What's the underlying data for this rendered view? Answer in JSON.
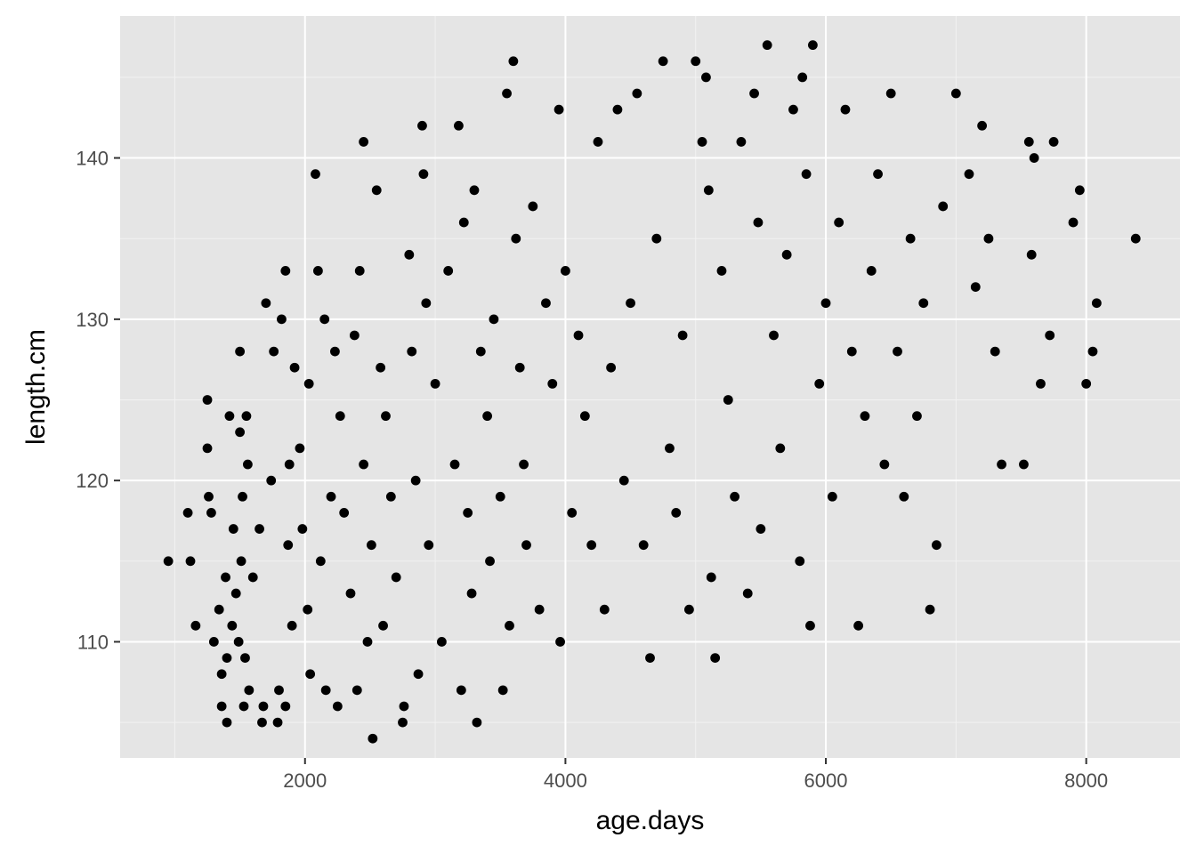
{
  "chart_data": {
    "type": "scatter",
    "title": "",
    "xlabel": "age.days",
    "ylabel": "length.cm",
    "xlim": [
      580,
      8720
    ],
    "ylim": [
      102.8,
      148.8
    ],
    "x_ticks": [
      2000,
      4000,
      6000,
      8000
    ],
    "x_tick_labels": [
      "2000",
      "4000",
      "6000",
      "8000"
    ],
    "y_ticks": [
      110,
      120,
      130,
      140
    ],
    "y_tick_labels": [
      "110",
      "120",
      "130",
      "140"
    ],
    "grid": true,
    "legend": "none",
    "colors": {
      "panel_background": "#e5e5e5",
      "grid_major": "#ffffff",
      "grid_minor": "#f2f2f2",
      "point": "#000000",
      "tick_label": "#4d4d4d",
      "axis_title": "#000000"
    },
    "series": [
      {
        "points": [
          [
            950,
            115
          ],
          [
            1100,
            118
          ],
          [
            1120,
            115
          ],
          [
            1160,
            111
          ],
          [
            1250,
            125
          ],
          [
            1250,
            122
          ],
          [
            1260,
            119
          ],
          [
            1280,
            118
          ],
          [
            1300,
            110
          ],
          [
            1340,
            112
          ],
          [
            1360,
            108
          ],
          [
            1360,
            106
          ],
          [
            1390,
            114
          ],
          [
            1400,
            105
          ],
          [
            1400,
            109
          ],
          [
            1420,
            124
          ],
          [
            1440,
            111
          ],
          [
            1450,
            117
          ],
          [
            1470,
            113
          ],
          [
            1490,
            110
          ],
          [
            1500,
            128
          ],
          [
            1500,
            123
          ],
          [
            1510,
            115
          ],
          [
            1520,
            119
          ],
          [
            1530,
            106
          ],
          [
            1540,
            109
          ],
          [
            1550,
            124
          ],
          [
            1560,
            121
          ],
          [
            1570,
            107
          ],
          [
            1600,
            114
          ],
          [
            1650,
            117
          ],
          [
            1670,
            105
          ],
          [
            1680,
            106
          ],
          [
            1700,
            131
          ],
          [
            1740,
            120
          ],
          [
            1760,
            128
          ],
          [
            1790,
            105
          ],
          [
            1800,
            107
          ],
          [
            1820,
            130
          ],
          [
            1850,
            133
          ],
          [
            1850,
            106
          ],
          [
            1870,
            116
          ],
          [
            1880,
            121
          ],
          [
            1900,
            111
          ],
          [
            1920,
            127
          ],
          [
            1960,
            122
          ],
          [
            1980,
            117
          ],
          [
            2020,
            112
          ],
          [
            2030,
            126
          ],
          [
            2040,
            108
          ],
          [
            2080,
            139
          ],
          [
            2100,
            133
          ],
          [
            2120,
            115
          ],
          [
            2150,
            130
          ],
          [
            2160,
            107
          ],
          [
            2200,
            119
          ],
          [
            2230,
            128
          ],
          [
            2250,
            106
          ],
          [
            2270,
            124
          ],
          [
            2300,
            118
          ],
          [
            2350,
            113
          ],
          [
            2380,
            129
          ],
          [
            2400,
            107
          ],
          [
            2420,
            133
          ],
          [
            2450,
            141
          ],
          [
            2450,
            121
          ],
          [
            2480,
            110
          ],
          [
            2510,
            116
          ],
          [
            2520,
            104
          ],
          [
            2550,
            138
          ],
          [
            2580,
            127
          ],
          [
            2600,
            111
          ],
          [
            2620,
            124
          ],
          [
            2660,
            119
          ],
          [
            2700,
            114
          ],
          [
            2750,
            105
          ],
          [
            2760,
            106
          ],
          [
            2800,
            134
          ],
          [
            2820,
            128
          ],
          [
            2850,
            120
          ],
          [
            2870,
            108
          ],
          [
            2900,
            142
          ],
          [
            2910,
            139
          ],
          [
            2930,
            131
          ],
          [
            2950,
            116
          ],
          [
            3000,
            126
          ],
          [
            3050,
            110
          ],
          [
            3100,
            133
          ],
          [
            3150,
            121
          ],
          [
            3180,
            142
          ],
          [
            3200,
            107
          ],
          [
            3220,
            136
          ],
          [
            3250,
            118
          ],
          [
            3280,
            113
          ],
          [
            3300,
            138
          ],
          [
            3320,
            105
          ],
          [
            3350,
            128
          ],
          [
            3400,
            124
          ],
          [
            3420,
            115
          ],
          [
            3450,
            130
          ],
          [
            3500,
            119
          ],
          [
            3520,
            107
          ],
          [
            3550,
            144
          ],
          [
            3570,
            111
          ],
          [
            3600,
            146
          ],
          [
            3620,
            135
          ],
          [
            3650,
            127
          ],
          [
            3680,
            121
          ],
          [
            3700,
            116
          ],
          [
            3750,
            137
          ],
          [
            3800,
            112
          ],
          [
            3850,
            131
          ],
          [
            3900,
            126
          ],
          [
            3950,
            143
          ],
          [
            3960,
            110
          ],
          [
            4000,
            133
          ],
          [
            4050,
            118
          ],
          [
            4100,
            129
          ],
          [
            4150,
            124
          ],
          [
            4200,
            116
          ],
          [
            4250,
            141
          ],
          [
            4300,
            112
          ],
          [
            4350,
            127
          ],
          [
            4400,
            143
          ],
          [
            4450,
            120
          ],
          [
            4500,
            131
          ],
          [
            4550,
            144
          ],
          [
            4600,
            116
          ],
          [
            4650,
            109
          ],
          [
            4700,
            135
          ],
          [
            4750,
            146
          ],
          [
            4800,
            122
          ],
          [
            4850,
            118
          ],
          [
            4900,
            129
          ],
          [
            4950,
            112
          ],
          [
            5000,
            146
          ],
          [
            5050,
            141
          ],
          [
            5080,
            145
          ],
          [
            5100,
            138
          ],
          [
            5120,
            114
          ],
          [
            5150,
            109
          ],
          [
            5200,
            133
          ],
          [
            5250,
            125
          ],
          [
            5300,
            119
          ],
          [
            5350,
            141
          ],
          [
            5400,
            113
          ],
          [
            5450,
            144
          ],
          [
            5480,
            136
          ],
          [
            5500,
            117
          ],
          [
            5550,
            147
          ],
          [
            5600,
            129
          ],
          [
            5650,
            122
          ],
          [
            5700,
            134
          ],
          [
            5750,
            143
          ],
          [
            5800,
            115
          ],
          [
            5820,
            145
          ],
          [
            5850,
            139
          ],
          [
            5880,
            111
          ],
          [
            5900,
            147
          ],
          [
            5950,
            126
          ],
          [
            6000,
            131
          ],
          [
            6050,
            119
          ],
          [
            6100,
            136
          ],
          [
            6150,
            143
          ],
          [
            6200,
            128
          ],
          [
            6250,
            111
          ],
          [
            6300,
            124
          ],
          [
            6350,
            133
          ],
          [
            6400,
            139
          ],
          [
            6450,
            121
          ],
          [
            6500,
            144
          ],
          [
            6550,
            128
          ],
          [
            6600,
            119
          ],
          [
            6650,
            135
          ],
          [
            6700,
            124
          ],
          [
            6750,
            131
          ],
          [
            6800,
            112
          ],
          [
            6850,
            116
          ],
          [
            6900,
            137
          ],
          [
            7000,
            144
          ],
          [
            7100,
            139
          ],
          [
            7150,
            132
          ],
          [
            7200,
            142
          ],
          [
            7250,
            135
          ],
          [
            7300,
            128
          ],
          [
            7350,
            121
          ],
          [
            7520,
            121
          ],
          [
            7560,
            141
          ],
          [
            7580,
            134
          ],
          [
            7600,
            140
          ],
          [
            7650,
            126
          ],
          [
            7720,
            129
          ],
          [
            7750,
            141
          ],
          [
            7900,
            136
          ],
          [
            7950,
            138
          ],
          [
            8000,
            126
          ],
          [
            8050,
            128
          ],
          [
            8080,
            131
          ],
          [
            8380,
            135
          ]
        ]
      }
    ]
  }
}
